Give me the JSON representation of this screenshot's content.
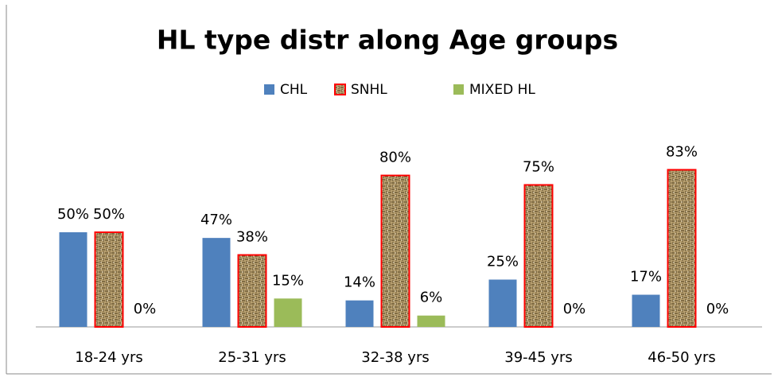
{
  "chart_data": {
    "type": "bar",
    "title": "HL  type distr along Age groups",
    "categories": [
      "18-24 yrs",
      "25-31 yrs",
      "32-38 yrs",
      "39-45 yrs",
      "46-50 yrs"
    ],
    "series": [
      {
        "name": "CHL",
        "color": "#4f81bd",
        "values": [
          50,
          47,
          14,
          25,
          17
        ],
        "value_labels": [
          "50%",
          "47%",
          "14%",
          "25%",
          "17%"
        ]
      },
      {
        "name": "SNHL",
        "color": "#b8a070",
        "edgecolor": "#ff0000",
        "values": [
          50,
          38,
          80,
          75,
          83
        ],
        "value_labels": [
          "50%",
          "38%",
          "80%",
          "75%",
          "83%"
        ]
      },
      {
        "name": "MIXED HL",
        "color": "#9bbb59",
        "values": [
          0,
          15,
          6,
          0,
          0
        ],
        "value_labels": [
          "0%",
          "15%",
          "6%",
          "0%",
          "0%"
        ]
      }
    ],
    "legend": "top"
  }
}
